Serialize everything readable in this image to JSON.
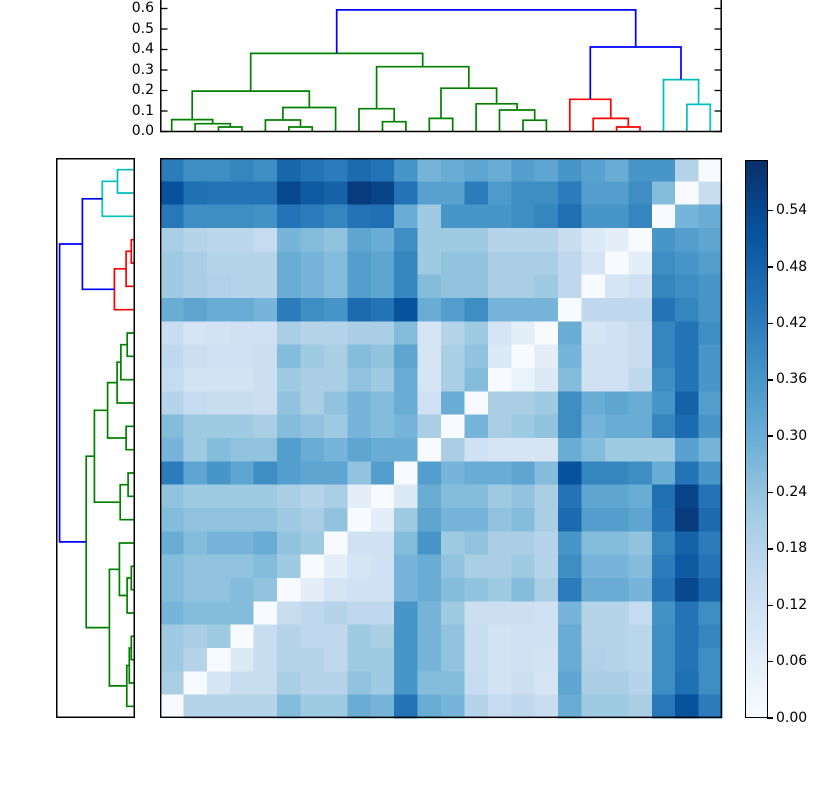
{
  "figure": {
    "kind": "hierarchical clustering heatmap (clustermap)",
    "background": "#ffffff",
    "axis_color": "#000000"
  },
  "chart_data": {
    "type": "heatmap",
    "title": "",
    "xlabel": "",
    "ylabel": "",
    "grid": false,
    "matrix": {
      "n": 24,
      "vmin": 0.0,
      "vmax": 0.594,
      "note": "pairwise distance matrix; rows are reversed column order so zero diagonal runs bottom-left to top-right",
      "values": [
        [
          0.42,
          0.38,
          0.38,
          0.4,
          0.38,
          0.47,
          0.44,
          0.42,
          0.46,
          0.44,
          0.36,
          0.28,
          0.3,
          0.32,
          0.3,
          0.34,
          0.32,
          0.36,
          0.33,
          0.3,
          0.36,
          0.36,
          0.18,
          0.0
        ],
        [
          0.52,
          0.45,
          0.44,
          0.44,
          0.44,
          0.54,
          0.5,
          0.48,
          0.57,
          0.55,
          0.44,
          0.33,
          0.33,
          0.42,
          0.35,
          0.38,
          0.38,
          0.42,
          0.34,
          0.34,
          0.38,
          0.26,
          0.0,
          0.14
        ],
        [
          0.43,
          0.38,
          0.38,
          0.38,
          0.37,
          0.44,
          0.42,
          0.4,
          0.44,
          0.45,
          0.3,
          0.22,
          0.36,
          0.36,
          0.36,
          0.38,
          0.4,
          0.45,
          0.36,
          0.36,
          0.4,
          0.0,
          0.28,
          0.3
        ],
        [
          0.2,
          0.18,
          0.17,
          0.17,
          0.15,
          0.28,
          0.26,
          0.24,
          0.32,
          0.3,
          0.38,
          0.22,
          0.22,
          0.22,
          0.18,
          0.18,
          0.18,
          0.14,
          0.08,
          0.06,
          0.0,
          0.36,
          0.34,
          0.32
        ],
        [
          0.22,
          0.2,
          0.18,
          0.18,
          0.18,
          0.3,
          0.28,
          0.26,
          0.34,
          0.32,
          0.4,
          0.22,
          0.24,
          0.24,
          0.2,
          0.2,
          0.2,
          0.16,
          0.1,
          0.0,
          0.06,
          0.38,
          0.36,
          0.34
        ],
        [
          0.22,
          0.2,
          0.19,
          0.18,
          0.18,
          0.3,
          0.28,
          0.26,
          0.34,
          0.32,
          0.4,
          0.26,
          0.24,
          0.24,
          0.2,
          0.2,
          0.22,
          0.16,
          0.0,
          0.1,
          0.12,
          0.4,
          0.38,
          0.36
        ],
        [
          0.3,
          0.32,
          0.3,
          0.3,
          0.28,
          0.42,
          0.38,
          0.36,
          0.46,
          0.44,
          0.52,
          0.3,
          0.34,
          0.38,
          0.28,
          0.28,
          0.28,
          0.0,
          0.16,
          0.16,
          0.16,
          0.44,
          0.4,
          0.36
        ],
        [
          0.14,
          0.1,
          0.11,
          0.12,
          0.12,
          0.2,
          0.18,
          0.18,
          0.2,
          0.2,
          0.26,
          0.1,
          0.18,
          0.22,
          0.1,
          0.06,
          0.0,
          0.3,
          0.1,
          0.12,
          0.14,
          0.4,
          0.44,
          0.38
        ],
        [
          0.16,
          0.13,
          0.12,
          0.12,
          0.13,
          0.26,
          0.22,
          0.2,
          0.26,
          0.24,
          0.32,
          0.1,
          0.2,
          0.24,
          0.08,
          0.0,
          0.06,
          0.28,
          0.12,
          0.12,
          0.14,
          0.4,
          0.44,
          0.36
        ],
        [
          0.15,
          0.11,
          0.11,
          0.11,
          0.13,
          0.22,
          0.2,
          0.2,
          0.24,
          0.22,
          0.3,
          0.1,
          0.2,
          0.26,
          0.0,
          0.04,
          0.08,
          0.26,
          0.12,
          0.12,
          0.16,
          0.38,
          0.44,
          0.36
        ],
        [
          0.18,
          0.15,
          0.14,
          0.14,
          0.13,
          0.24,
          0.2,
          0.24,
          0.28,
          0.26,
          0.3,
          0.12,
          0.3,
          0.0,
          0.2,
          0.2,
          0.22,
          0.38,
          0.3,
          0.32,
          0.3,
          0.36,
          0.48,
          0.34
        ],
        [
          0.26,
          0.22,
          0.22,
          0.22,
          0.2,
          0.26,
          0.24,
          0.22,
          0.28,
          0.26,
          0.28,
          0.2,
          0.0,
          0.28,
          0.2,
          0.22,
          0.24,
          0.38,
          0.28,
          0.3,
          0.3,
          0.4,
          0.46,
          0.36
        ],
        [
          0.28,
          0.22,
          0.26,
          0.24,
          0.24,
          0.34,
          0.3,
          0.28,
          0.32,
          0.3,
          0.3,
          0.0,
          0.2,
          0.12,
          0.1,
          0.1,
          0.1,
          0.3,
          0.26,
          0.22,
          0.22,
          0.22,
          0.33,
          0.28
        ],
        [
          0.42,
          0.32,
          0.36,
          0.32,
          0.38,
          0.34,
          0.32,
          0.32,
          0.24,
          0.34,
          0.0,
          0.34,
          0.28,
          0.3,
          0.3,
          0.32,
          0.26,
          0.52,
          0.4,
          0.4,
          0.38,
          0.3,
          0.44,
          0.36
        ],
        [
          0.24,
          0.22,
          0.22,
          0.22,
          0.22,
          0.2,
          0.18,
          0.2,
          0.06,
          0.0,
          0.08,
          0.3,
          0.26,
          0.26,
          0.22,
          0.24,
          0.2,
          0.44,
          0.32,
          0.32,
          0.3,
          0.45,
          0.55,
          0.44
        ],
        [
          0.26,
          0.24,
          0.24,
          0.24,
          0.24,
          0.22,
          0.2,
          0.24,
          0.0,
          0.06,
          0.22,
          0.32,
          0.28,
          0.28,
          0.24,
          0.26,
          0.2,
          0.46,
          0.34,
          0.34,
          0.32,
          0.44,
          0.57,
          0.46
        ],
        [
          0.3,
          0.26,
          0.28,
          0.28,
          0.3,
          0.24,
          0.22,
          0.0,
          0.12,
          0.12,
          0.26,
          0.36,
          0.22,
          0.24,
          0.2,
          0.2,
          0.18,
          0.36,
          0.26,
          0.26,
          0.24,
          0.4,
          0.48,
          0.42
        ],
        [
          0.26,
          0.24,
          0.24,
          0.24,
          0.26,
          0.22,
          0.0,
          0.06,
          0.1,
          0.12,
          0.28,
          0.3,
          0.24,
          0.2,
          0.2,
          0.22,
          0.18,
          0.38,
          0.28,
          0.28,
          0.26,
          0.42,
          0.5,
          0.44
        ],
        [
          0.26,
          0.24,
          0.24,
          0.26,
          0.24,
          0.0,
          0.06,
          0.1,
          0.12,
          0.12,
          0.28,
          0.3,
          0.26,
          0.24,
          0.22,
          0.26,
          0.2,
          0.42,
          0.3,
          0.3,
          0.28,
          0.44,
          0.54,
          0.47
        ],
        [
          0.28,
          0.26,
          0.26,
          0.26,
          0.0,
          0.14,
          0.16,
          0.18,
          0.16,
          0.16,
          0.36,
          0.28,
          0.22,
          0.13,
          0.13,
          0.13,
          0.12,
          0.28,
          0.18,
          0.18,
          0.15,
          0.37,
          0.44,
          0.38
        ],
        [
          0.22,
          0.2,
          0.22,
          0.0,
          0.14,
          0.18,
          0.16,
          0.16,
          0.22,
          0.2,
          0.36,
          0.28,
          0.24,
          0.14,
          0.11,
          0.12,
          0.12,
          0.3,
          0.18,
          0.18,
          0.17,
          0.38,
          0.44,
          0.4
        ],
        [
          0.22,
          0.18,
          0.0,
          0.08,
          0.14,
          0.18,
          0.18,
          0.16,
          0.22,
          0.22,
          0.36,
          0.28,
          0.24,
          0.14,
          0.11,
          0.12,
          0.11,
          0.3,
          0.19,
          0.18,
          0.17,
          0.38,
          0.44,
          0.38
        ],
        [
          0.2,
          0.0,
          0.1,
          0.14,
          0.14,
          0.2,
          0.18,
          0.18,
          0.24,
          0.22,
          0.36,
          0.26,
          0.26,
          0.15,
          0.11,
          0.13,
          0.1,
          0.32,
          0.2,
          0.2,
          0.18,
          0.38,
          0.45,
          0.38
        ],
        [
          0.0,
          0.18,
          0.18,
          0.18,
          0.18,
          0.26,
          0.22,
          0.22,
          0.3,
          0.28,
          0.44,
          0.3,
          0.28,
          0.18,
          0.15,
          0.16,
          0.14,
          0.3,
          0.22,
          0.22,
          0.2,
          0.43,
          0.52,
          0.42
        ]
      ]
    },
    "colormap": {
      "name": "Blues",
      "anchors": [
        {
          "t": 0.0,
          "color": "#f7fbff"
        },
        {
          "t": 0.125,
          "color": "#deebf7"
        },
        {
          "t": 0.25,
          "color": "#c6dbef"
        },
        {
          "t": 0.375,
          "color": "#9ecae1"
        },
        {
          "t": 0.5,
          "color": "#6baed6"
        },
        {
          "t": 0.625,
          "color": "#4292c6"
        },
        {
          "t": 0.75,
          "color": "#2171b5"
        },
        {
          "t": 0.875,
          "color": "#08519c"
        },
        {
          "t": 1.0,
          "color": "#08306b"
        }
      ]
    },
    "colorbar": {
      "tick_labels": [
        "0.00",
        "0.06",
        "0.12",
        "0.18",
        "0.24",
        "0.30",
        "0.36",
        "0.42",
        "0.48",
        "0.54"
      ],
      "tick_values": [
        0.0,
        0.06,
        0.12,
        0.18,
        0.24,
        0.3,
        0.36,
        0.42,
        0.48,
        0.54
      ]
    },
    "top_axis": {
      "tick_labels": [
        "0.0",
        "0.1",
        "0.2",
        "0.3",
        "0.4",
        "0.5",
        "0.6"
      ],
      "tick_values": [
        0.0,
        0.1,
        0.2,
        0.3,
        0.4,
        0.5,
        0.6
      ]
    },
    "dendrogram": {
      "leaf_count": 24,
      "palette": {
        "g": "#008000",
        "r": "#ff0000",
        "c": "#00bfbf",
        "b": "#0000ff"
      },
      "clusters": [
        {
          "color": "green",
          "leaves": "0-16"
        },
        {
          "color": "red",
          "leaves": "17-20"
        },
        {
          "color": "cyan",
          "leaves": "21-23"
        }
      ],
      "merges": [
        [
          "L2",
          "L3",
          0.022,
          "g"
        ],
        [
          "L1",
          "M0",
          0.038,
          "g"
        ],
        [
          "L0",
          "M1",
          0.058,
          "g"
        ],
        [
          "L5",
          "L6",
          0.022,
          "g"
        ],
        [
          "L4",
          "M3",
          0.056,
          "g"
        ],
        [
          "M4",
          "L7",
          0.117,
          "g"
        ],
        [
          "M2",
          "M5",
          0.197,
          "g"
        ],
        [
          "L9",
          "L10",
          0.048,
          "g"
        ],
        [
          "L8",
          "M7",
          0.111,
          "g"
        ],
        [
          "L11",
          "L12",
          0.064,
          "g"
        ],
        [
          "L15",
          "L16",
          0.055,
          "g"
        ],
        [
          "L14",
          "M10",
          0.105,
          "g"
        ],
        [
          "L13",
          "M11",
          0.135,
          "g"
        ],
        [
          "M9",
          "M12",
          0.211,
          "g"
        ],
        [
          "M8",
          "M13",
          0.316,
          "g"
        ],
        [
          "M6",
          "M14",
          0.381,
          "g"
        ],
        [
          "L19",
          "L20",
          0.022,
          "r"
        ],
        [
          "L18",
          "M16",
          0.064,
          "r"
        ],
        [
          "L17",
          "M17",
          0.157,
          "r"
        ],
        [
          "L22",
          "L23",
          0.132,
          "c"
        ],
        [
          "L21",
          "M19",
          0.253,
          "c"
        ],
        [
          "M18",
          "M20",
          0.412,
          "b"
        ],
        [
          "M15",
          "M21",
          0.593,
          "b"
        ]
      ]
    }
  }
}
